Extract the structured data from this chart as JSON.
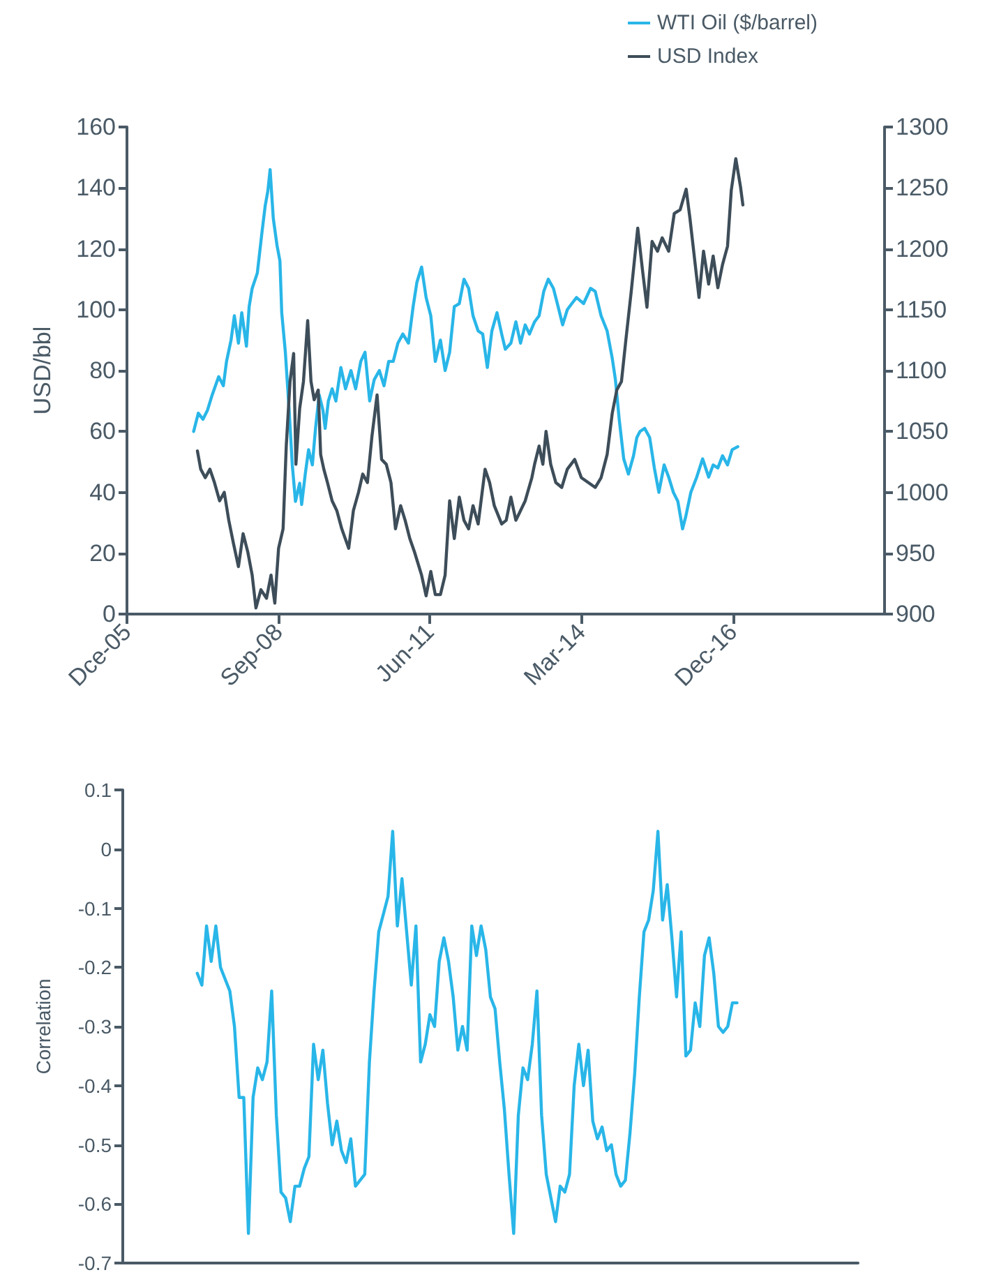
{
  "chart_data": [
    {
      "type": "line",
      "ylabel": "USD/bbl",
      "legend": "top right",
      "xlim": [
        "2005-12",
        "2019-09"
      ],
      "xticks": [
        {
          "value": "2005-12",
          "label": "Dce-05"
        },
        {
          "value": "2008-09",
          "label": "Sep-08"
        },
        {
          "value": "2011-06",
          "label": "Jun-11"
        },
        {
          "value": "2014-03",
          "label": "Mar-14"
        },
        {
          "value": "2016-12",
          "label": "Dec-16"
        }
      ],
      "ylim": [
        0,
        160
      ],
      "yticks": [
        0,
        20,
        40,
        60,
        80,
        100,
        120,
        140,
        160
      ],
      "y2lim": [
        900,
        1300
      ],
      "y2ticks": [
        900,
        950,
        1000,
        1050,
        1100,
        1150,
        1200,
        1250,
        1300
      ],
      "series": [
        {
          "name": "WTI Oil ($/barrel)",
          "color": "#29b6e8",
          "x": [
            "2007-02-16",
            "2007-03-19",
            "2007-04-19",
            "2007-05-19",
            "2007-06-19",
            "2007-08-01",
            "2007-09-01",
            "2007-09-22",
            "2007-10-22",
            "2007-11-13",
            "2007-12-10",
            "2008-01-01",
            "2008-02-01",
            "2008-02-19",
            "2008-03-10",
            "2008-04-13",
            "2008-05-13",
            "2008-06-04",
            "2008-06-22",
            "2008-07-07",
            "2008-07-28",
            "2008-08-22",
            "2008-09-10",
            "2008-09-22",
            "2008-10-16",
            "2008-11-10",
            "2008-12-01",
            "2008-12-22",
            "2009-01-19",
            "2009-02-01",
            "2009-02-25",
            "2009-03-19",
            "2009-04-13",
            "2009-05-04",
            "2009-05-28",
            "2009-06-22",
            "2009-07-07",
            "2009-07-28",
            "2009-08-22",
            "2009-09-16",
            "2009-10-19",
            "2009-11-19",
            "2009-12-25",
            "2010-01-25",
            "2010-02-28",
            "2010-03-28",
            "2010-04-28",
            "2010-05-28",
            "2010-07-01",
            "2010-08-01",
            "2010-09-01",
            "2010-10-01",
            "2010-11-01",
            "2010-12-04",
            "2011-01-10",
            "2011-02-10",
            "2011-03-07",
            "2011-04-07",
            "2011-05-07",
            "2011-06-07",
            "2011-07-07",
            "2011-08-10",
            "2011-09-10",
            "2011-10-10",
            "2011-11-10",
            "2011-12-13",
            "2012-01-13",
            "2012-02-13",
            "2012-03-13",
            "2012-04-16",
            "2012-05-16",
            "2012-06-16",
            "2012-07-16",
            "2012-08-19",
            "2012-09-19",
            "2012-10-13",
            "2012-11-19",
            "2012-12-22",
            "2013-01-22",
            "2013-02-22",
            "2013-03-22",
            "2013-04-25",
            "2013-05-25",
            "2013-06-25",
            "2013-07-25",
            "2013-08-28",
            "2013-09-28",
            "2013-10-28",
            "2013-11-28",
            "2013-12-28",
            "2014-01-28",
            "2014-03-16",
            "2014-05-01",
            "2014-06-01",
            "2014-07-10",
            "2014-08-19",
            "2014-09-22",
            "2014-10-13",
            "2014-11-07",
            "2014-12-07",
            "2015-01-07",
            "2015-02-10",
            "2015-03-04",
            "2015-03-25",
            "2015-04-25",
            "2015-05-28",
            "2015-06-28",
            "2015-07-28",
            "2015-09-01",
            "2015-10-01",
            "2015-11-01",
            "2015-12-01",
            "2016-01-01",
            "2016-01-22",
            "2016-02-25",
            "2016-04-04",
            "2016-05-13",
            "2016-06-22",
            "2016-07-22",
            "2016-08-22",
            "2016-09-22",
            "2016-10-25",
            "2016-11-25",
            "2017-01-01"
          ],
          "values": [
            60,
            66,
            64,
            67,
            72,
            78,
            75,
            83,
            90,
            98,
            89,
            99,
            88,
            101,
            107,
            112,
            125,
            134,
            139,
            146,
            130,
            121,
            116,
            99,
            86,
            67,
            49,
            37,
            43,
            36,
            46,
            54,
            49,
            61,
            72,
            67,
            61,
            70,
            74,
            70,
            81,
            74,
            80,
            74,
            83,
            86,
            70,
            77,
            80,
            75,
            83,
            83,
            89,
            92,
            89,
            101,
            109,
            114,
            104,
            98,
            83,
            90,
            80,
            86,
            101,
            102,
            110,
            107,
            98,
            93,
            92,
            81,
            93,
            99,
            92,
            87,
            89,
            96,
            89,
            95,
            92,
            96,
            98,
            106,
            110,
            107,
            101,
            95,
            100,
            102,
            104,
            102,
            107,
            106,
            98,
            93,
            84,
            77,
            64,
            51,
            46,
            52,
            58,
            60,
            61,
            58,
            48,
            40,
            49,
            45,
            40,
            37,
            28,
            32,
            40,
            45,
            51,
            45,
            49,
            48,
            52,
            49,
            54,
            55
          ]
        },
        {
          "name": "USD Index",
          "color": "#3d4d59",
          "axis": "y2",
          "x": [
            "2007-03-13",
            "2007-04-04",
            "2007-05-04",
            "2007-06-04",
            "2007-07-04",
            "2007-08-07",
            "2007-09-07",
            "2007-10-07",
            "2007-11-07",
            "2007-12-10",
            "2008-01-10",
            "2008-02-10",
            "2008-03-10",
            "2008-04-04",
            "2008-05-07",
            "2008-06-13",
            "2008-07-13",
            "2008-08-07",
            "2008-09-01",
            "2008-10-01",
            "2008-10-22",
            "2008-11-16",
            "2008-12-10",
            "2008-12-25",
            "2009-01-19",
            "2009-02-13",
            "2009-03-13",
            "2009-04-04",
            "2009-04-25",
            "2009-05-22",
            "2009-06-07",
            "2009-06-28",
            "2009-07-22",
            "2009-08-22",
            "2009-09-22",
            "2009-10-25",
            "2009-12-10",
            "2010-01-10",
            "2010-02-13",
            "2010-03-13",
            "2010-04-13",
            "2010-05-13",
            "2010-06-16",
            "2010-07-16",
            "2010-08-16",
            "2010-09-16",
            "2010-10-16",
            "2010-11-19",
            "2010-12-19",
            "2011-01-19",
            "2011-02-19",
            "2011-04-07",
            "2011-05-07",
            "2011-06-07",
            "2011-07-07",
            "2011-08-10",
            "2011-09-10",
            "2011-10-10",
            "2011-11-10",
            "2011-12-13",
            "2012-01-13",
            "2012-02-13",
            "2012-03-13",
            "2012-04-16",
            "2012-06-01",
            "2012-07-01",
            "2012-08-01",
            "2012-09-19",
            "2012-10-19",
            "2012-11-19",
            "2012-12-22",
            "2013-01-22",
            "2013-02-22",
            "2013-04-07",
            "2013-04-25",
            "2013-05-25",
            "2013-06-19",
            "2013-07-10",
            "2013-08-10",
            "2013-09-13",
            "2013-10-22",
            "2013-11-28",
            "2014-01-16",
            "2014-03-01",
            "2014-04-16",
            "2014-06-01",
            "2014-07-10",
            "2014-08-19",
            "2014-09-22",
            "2014-10-22",
            "2014-11-22",
            "2014-12-22",
            "2015-01-25",
            "2015-03-10",
            "2015-04-10",
            "2015-05-10",
            "2015-06-13",
            "2015-07-19",
            "2015-08-19",
            "2015-10-01",
            "2015-11-07",
            "2015-12-16",
            "2016-01-25",
            "2016-02-19",
            "2016-03-25",
            "2016-04-19",
            "2016-05-19",
            "2016-06-22",
            "2016-07-22",
            "2016-08-22",
            "2016-09-22",
            "2016-10-25",
            "2016-11-19",
            "2016-12-19",
            "2017-01-19",
            "2017-02-04"
          ],
          "values": [
            1034,
            1019,
            1012,
            1019,
            1008,
            993,
            1000,
            977,
            958,
            939,
            966,
            951,
            932,
            905,
            920,
            913,
            932,
            909,
            954,
            970,
            1038,
            1091,
            1114,
            1023,
            1069,
            1091,
            1141,
            1091,
            1076,
            1084,
            1031,
            1019,
            1008,
            993,
            985,
            970,
            954,
            985,
            1000,
            1015,
            1008,
            1046,
            1080,
            1027,
            1023,
            1008,
            970,
            989,
            977,
            962,
            951,
            932,
            915,
            935,
            916,
            916,
            932,
            993,
            962,
            996,
            977,
            970,
            989,
            974,
            1019,
            1008,
            989,
            974,
            977,
            996,
            977,
            985,
            993,
            1012,
            1023,
            1038,
            1023,
            1050,
            1023,
            1008,
            1004,
            1019,
            1027,
            1012,
            1008,
            1004,
            1012,
            1031,
            1065,
            1084,
            1091,
            1126,
            1164,
            1217,
            1183,
            1152,
            1206,
            1198,
            1209,
            1198,
            1229,
            1232,
            1249,
            1225,
            1187,
            1160,
            1198,
            1171,
            1194,
            1168,
            1187,
            1202,
            1248,
            1274,
            1251,
            1236
          ]
        }
      ]
    },
    {
      "type": "line",
      "ylabel": "Correlation",
      "tick_labels": "y",
      "categories": [
        null,
        null,
        null,
        null,
        null,
        null,
        null,
        null,
        null,
        null,
        null,
        null,
        null,
        null,
        null,
        null,
        null,
        null,
        null,
        null,
        null,
        null,
        null,
        null,
        null,
        null,
        null,
        null,
        null,
        null,
        null,
        null,
        null,
        null,
        null,
        null,
        null,
        null,
        null,
        null,
        null,
        null,
        null,
        null,
        null,
        null,
        null,
        null,
        null,
        null,
        null,
        null,
        null,
        null,
        null,
        null,
        null,
        null,
        null,
        null,
        null,
        null,
        null,
        null,
        null,
        null,
        null,
        null,
        null,
        null,
        null,
        null,
        null,
        null,
        null,
        null,
        null,
        null,
        null,
        null,
        null,
        null,
        null,
        null,
        null,
        null,
        null,
        null,
        null,
        null,
        null,
        null,
        null,
        null,
        null,
        null,
        null,
        null,
        null,
        null,
        null,
        null,
        null,
        null,
        null,
        null,
        null,
        null,
        null,
        null,
        null,
        null,
        null,
        null,
        null,
        null,
        null,
        null,
        null,
        null,
        null,
        null,
        null,
        null,
        null,
        null,
        null,
        null,
        null,
        null,
        null,
        null,
        null,
        null,
        null,
        null,
        null,
        null,
        null,
        null,
        null,
        null,
        null,
        null,
        null,
        null,
        null,
        null,
        null,
        null,
        null,
        null,
        null,
        null,
        null,
        null,
        null,
        null,
        null
      ],
      "ylim": [
        -0.7,
        0.1
      ],
      "yticks": [
        0.1,
        0,
        -0.1,
        -0.2,
        -0.3,
        -0.4,
        -0.5,
        -0.6,
        -0.7
      ],
      "series": [
        {
          "color": "#29b6e8",
          "values": [
            null,
            null,
            null,
            null,
            null,
            null,
            null,
            null,
            null,
            null,
            null,
            null,
            null,
            null,
            null,
            null,
            -0.21,
            -0.23,
            -0.13,
            -0.19,
            -0.13,
            -0.2,
            -0.22,
            -0.24,
            -0.3,
            -0.42,
            -0.42,
            -0.65,
            -0.42,
            -0.37,
            -0.39,
            -0.36,
            -0.24,
            -0.45,
            -0.58,
            -0.59,
            -0.63,
            -0.57,
            -0.57,
            -0.54,
            -0.52,
            -0.33,
            -0.39,
            -0.34,
            -0.43,
            -0.5,
            -0.46,
            -0.51,
            -0.53,
            -0.49,
            -0.57,
            -0.56,
            -0.55,
            -0.36,
            -0.24,
            -0.14,
            -0.11,
            -0.08,
            0.03,
            -0.13,
            -0.05,
            -0.14,
            -0.23,
            -0.13,
            -0.36,
            -0.33,
            -0.28,
            -0.3,
            -0.19,
            -0.15,
            -0.19,
            -0.25,
            -0.34,
            -0.3,
            -0.34,
            -0.13,
            -0.18,
            -0.13,
            -0.17,
            -0.25,
            -0.27,
            -0.36,
            -0.44,
            -0.55,
            -0.65,
            -0.45,
            -0.37,
            -0.39,
            -0.33,
            -0.24,
            -0.45,
            -0.55,
            -0.59,
            -0.63,
            -0.57,
            -0.58,
            -0.55,
            -0.4,
            -0.33,
            -0.4,
            -0.34,
            -0.46,
            -0.49,
            -0.47,
            -0.51,
            -0.5,
            -0.55,
            -0.57,
            -0.56,
            -0.48,
            -0.38,
            -0.25,
            -0.14,
            -0.12,
            -0.07,
            0.03,
            -0.12,
            -0.06,
            -0.15,
            -0.25,
            -0.14,
            -0.35,
            -0.34,
            -0.26,
            -0.3,
            -0.18,
            -0.15,
            -0.21,
            -0.3,
            -0.31,
            -0.3,
            -0.26,
            -0.26,
            null,
            null,
            null,
            null,
            null,
            null,
            null,
            null,
            null,
            null,
            null,
            null,
            null,
            null,
            null,
            null,
            null,
            null,
            null,
            null,
            null,
            null,
            null,
            null,
            null,
            null
          ]
        }
      ]
    }
  ]
}
